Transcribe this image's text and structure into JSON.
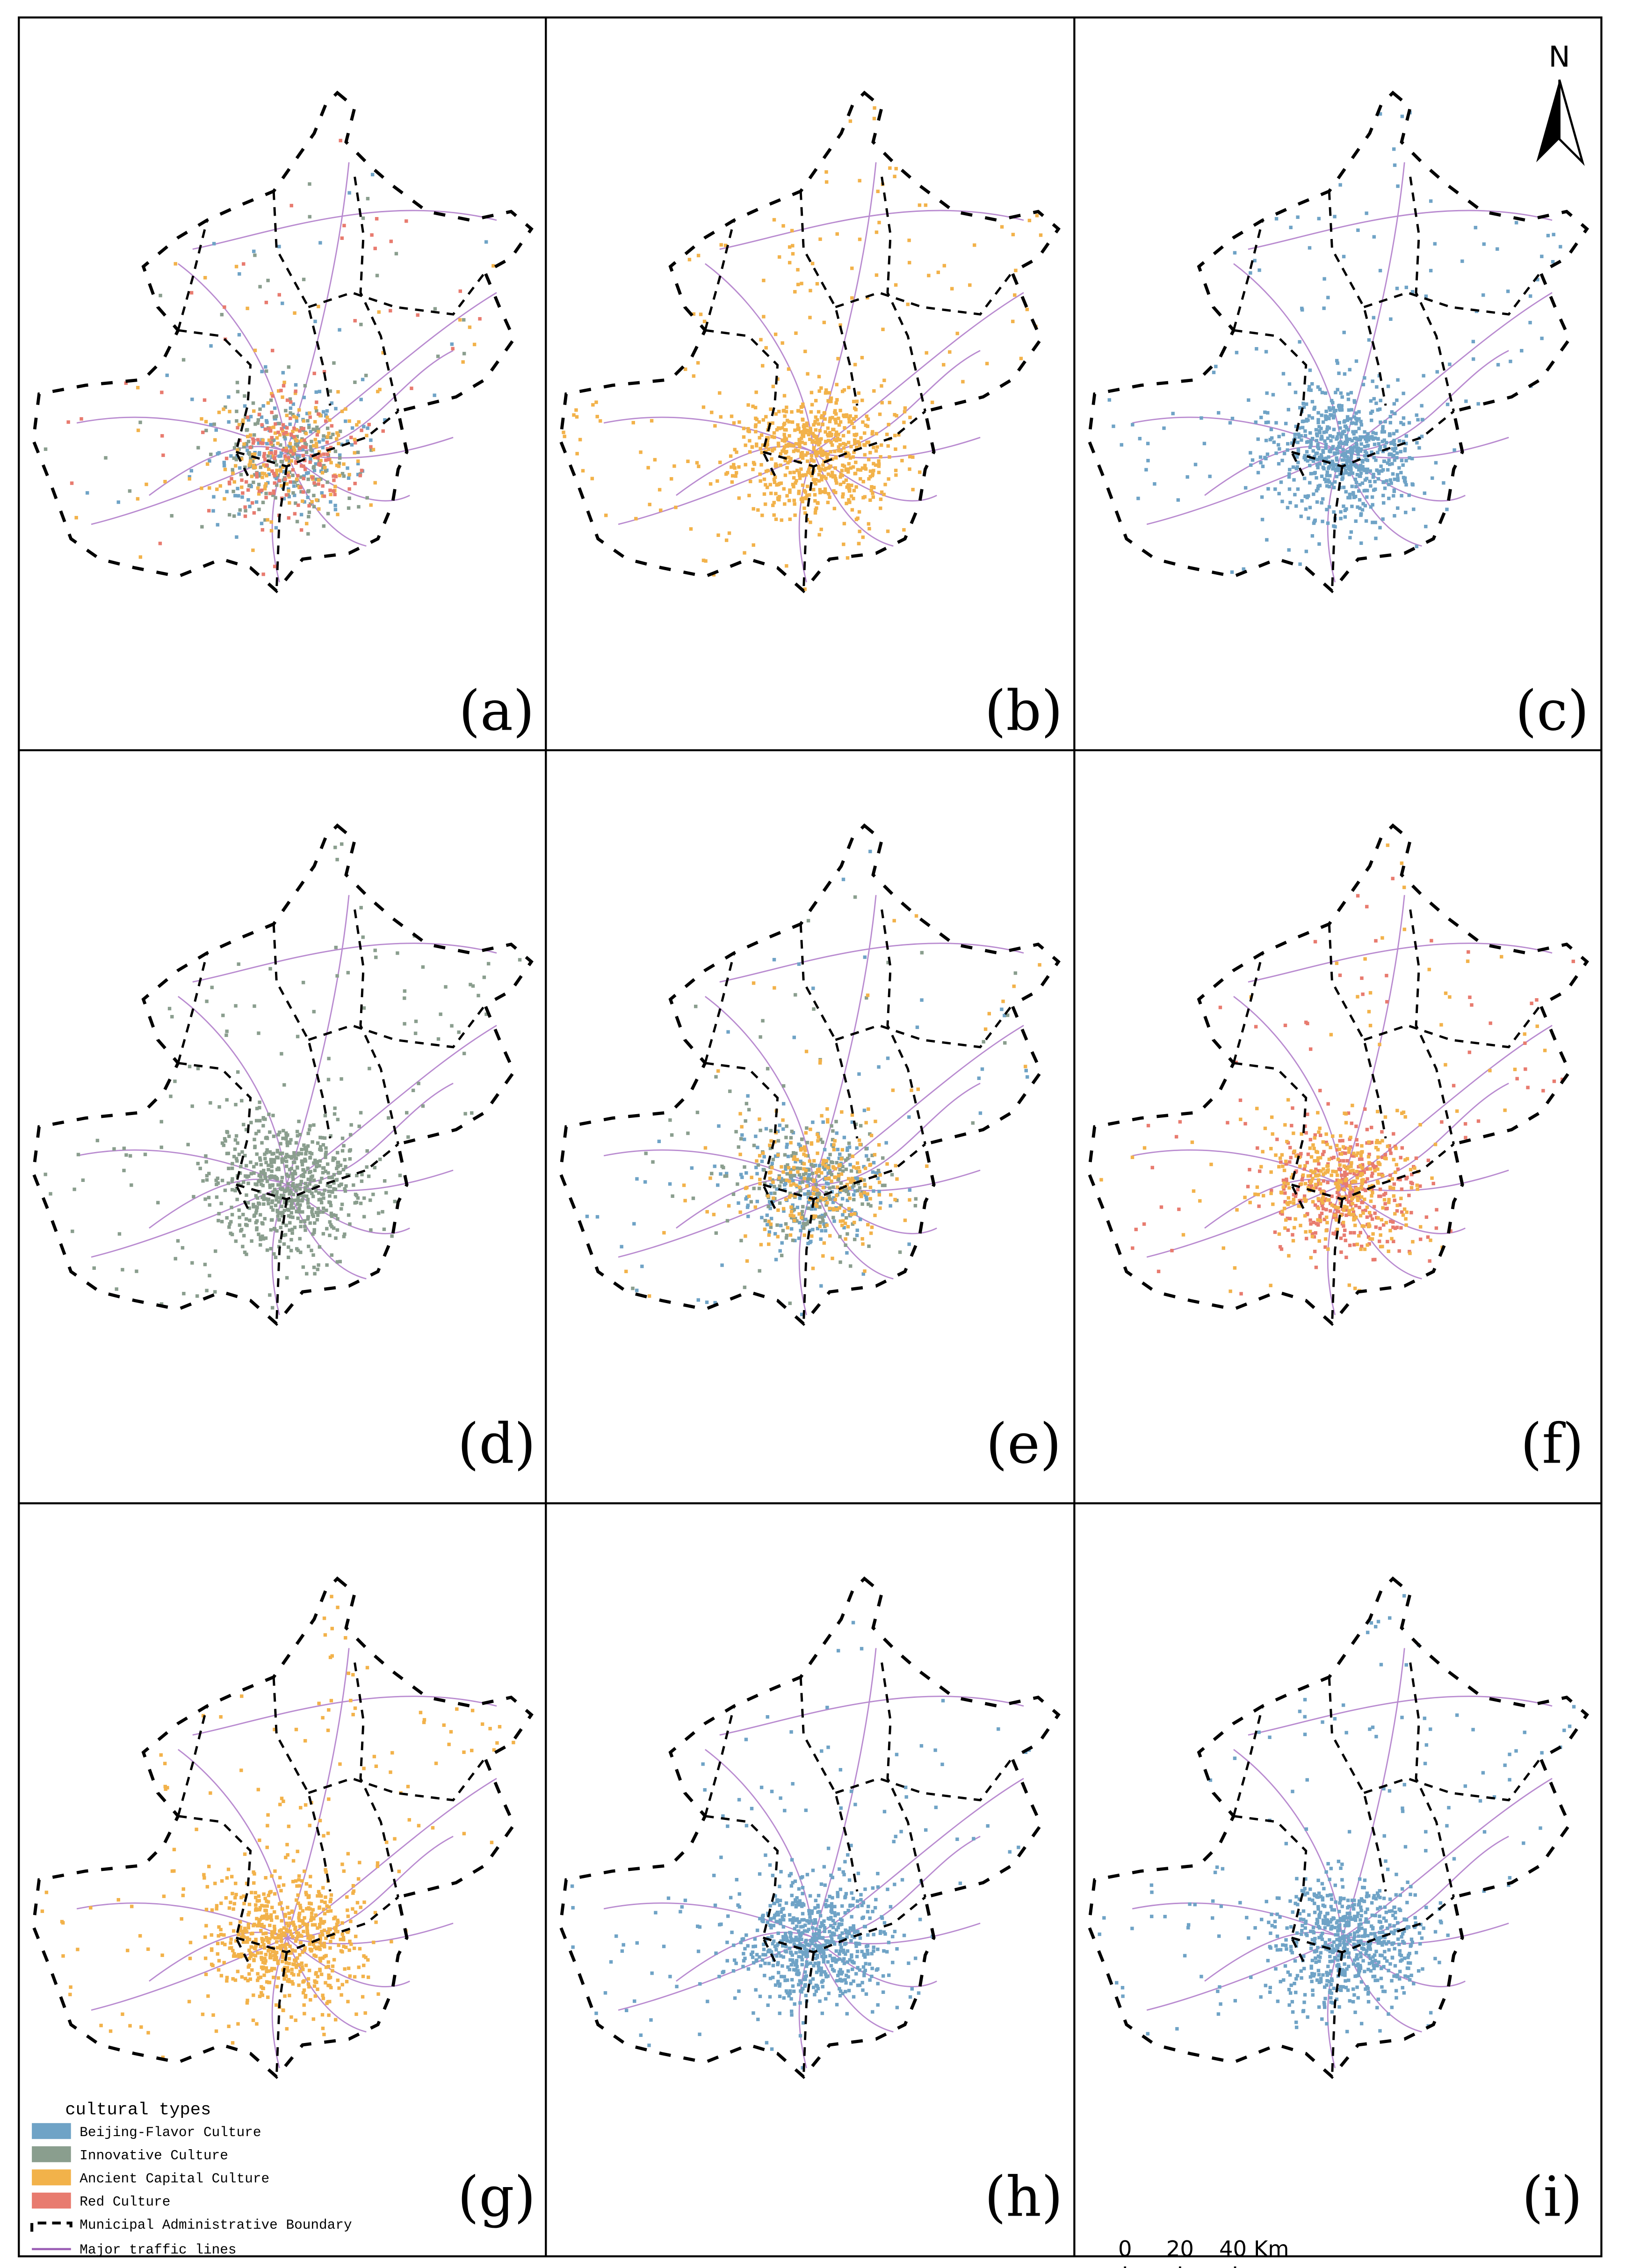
{
  "panels": [
    {
      "label": "(a)",
      "colors": [
        "#6fa3c6",
        "#8a9e8e",
        "#f2b24a",
        "#e87b6f"
      ]
    },
    {
      "label": "(b)",
      "colors": [
        "#f2b24a"
      ]
    },
    {
      "label": "(c)",
      "colors": [
        "#6fa3c6"
      ]
    },
    {
      "label": "(d)",
      "colors": [
        "#8a9e8e"
      ]
    },
    {
      "label": "(e)",
      "colors": [
        "#6fa3c6",
        "#8a9e8e",
        "#f2b24a"
      ]
    },
    {
      "label": "(f)",
      "colors": [
        "#e87b6f",
        "#f2b24a"
      ]
    },
    {
      "label": "(g)",
      "colors": [
        "#f2b24a"
      ]
    },
    {
      "label": "(h)",
      "colors": [
        "#6fa3c6"
      ]
    },
    {
      "label": "(i)",
      "colors": [
        "#6fa3c6"
      ]
    }
  ],
  "legend": {
    "title": "cultural types",
    "items": [
      {
        "name": "Beijing-Flavor Culture",
        "color": "#6fa3c6"
      },
      {
        "name": "Innovative Culture",
        "color": "#8a9e8e"
      },
      {
        "name": "Ancient Capital Culture",
        "color": "#f2b24a"
      },
      {
        "name": "Red Culture",
        "color": "#e87b6f"
      }
    ],
    "boundary": "Municipal Administrative Boundary",
    "traffic": "Major traffic lines"
  },
  "north": "N",
  "scale_bar": {
    "labels": [
      "0",
      "20",
      "40 Km"
    ]
  }
}
